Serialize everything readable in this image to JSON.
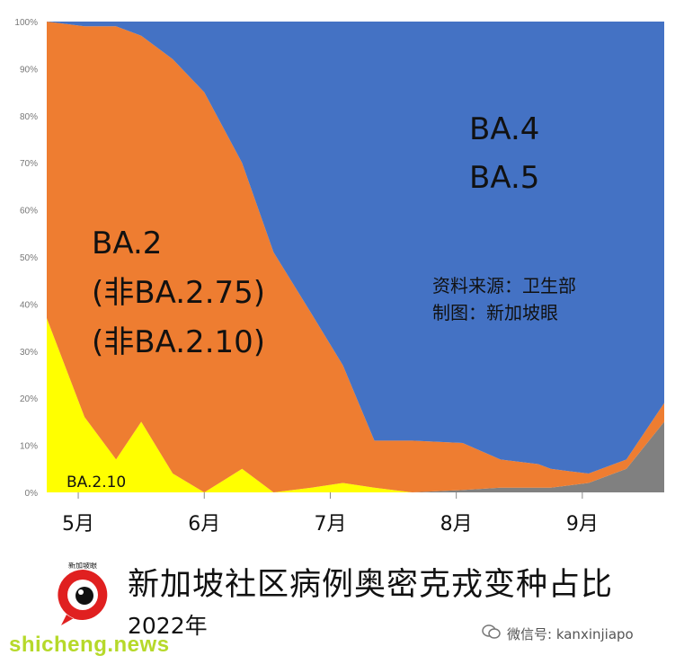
{
  "chart_data": {
    "type": "area",
    "stacked": true,
    "normalized": true,
    "x": [
      0,
      0.3,
      0.55,
      0.75,
      1.0,
      1.25,
      1.55,
      1.8,
      2.1,
      2.35,
      2.6,
      2.9,
      3.3,
      3.6,
      3.9,
      4.0,
      4.3,
      4.6,
      4.9
    ],
    "series": [
      {
        "name": "BA.2.10",
        "color": "#ffff00",
        "values": [
          37,
          16,
          7,
          15,
          4,
          0,
          5,
          0,
          1,
          2,
          1,
          0,
          0,
          0,
          0,
          0,
          0,
          0,
          0
        ]
      },
      {
        "name": "",
        "color": "#808080",
        "values": [
          0,
          0,
          0,
          0,
          0,
          0,
          0,
          0,
          0,
          0,
          0,
          0,
          0.5,
          1,
          1,
          1,
          2,
          5,
          15
        ]
      },
      {
        "name": "BA.2 (非BA.2.75) (非BA.2.10)",
        "color": "#ee7d31",
        "values": [
          63,
          83,
          92,
          82,
          88,
          85,
          65,
          51,
          37,
          25,
          10,
          11,
          10,
          6,
          5,
          4,
          2,
          2,
          4
        ]
      },
      {
        "name": "BA.4 BA.5",
        "color": "#4472c4",
        "values": [
          0,
          1,
          1,
          3,
          8,
          15,
          30,
          49,
          62,
          73,
          89,
          89,
          89.5,
          93,
          94,
          95,
          96,
          93,
          81
        ]
      }
    ],
    "x_ticks": [
      {
        "pos": 0.25,
        "label": "5月"
      },
      {
        "pos": 1.25,
        "label": "6月"
      },
      {
        "pos": 2.25,
        "label": "7月"
      },
      {
        "pos": 3.25,
        "label": "8月"
      },
      {
        "pos": 4.25,
        "label": "9月"
      }
    ],
    "xlim": [
      0,
      4.9
    ],
    "ylim": [
      0,
      100
    ],
    "y_ticks": [
      "0%",
      "10%",
      "20%",
      "30%",
      "40%",
      "50%",
      "60%",
      "70%",
      "80%",
      "90%",
      "100%"
    ],
    "annotations": {
      "ba45": [
        "BA.4",
        "BA.5"
      ],
      "ba2": [
        "BA.2",
        "(非BA.2.75)",
        "(非BA.2.10)"
      ],
      "ba210": "BA.2.10",
      "source": [
        "资料来源：卫生部",
        "制图：新加坡眼"
      ]
    },
    "title": "新加坡社区病例奥密克戎变种占比",
    "subtitle": "2022年"
  },
  "logo": {
    "text": "新加坡眼",
    "color": "#e02020"
  },
  "wechat": {
    "label": "微信号: kanxinjiapo"
  },
  "watermark": {
    "text": "shicheng.news"
  }
}
